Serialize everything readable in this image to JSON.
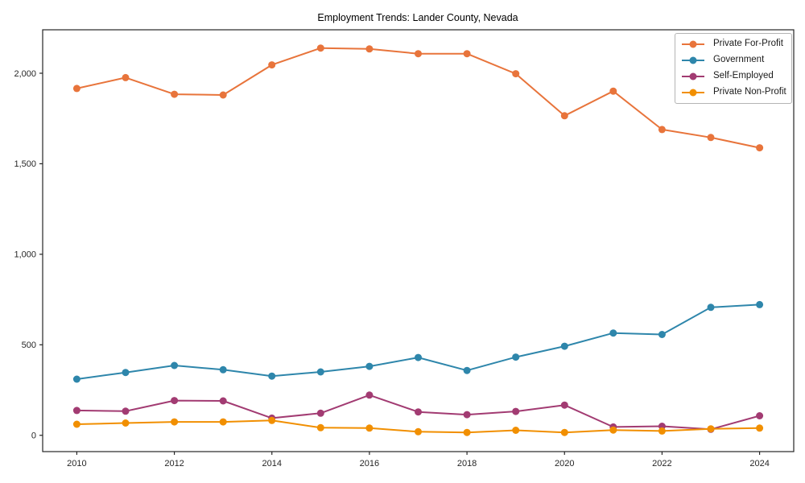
{
  "chart_data": {
    "type": "line",
    "title": "Employment Trends: Lander County, Nevada",
    "xlabel": "",
    "ylabel": "",
    "grid": false,
    "legend_position": "top-right",
    "x": [
      2010,
      2011,
      2012,
      2013,
      2014,
      2015,
      2016,
      2017,
      2018,
      2019,
      2020,
      2021,
      2022,
      2023,
      2024
    ],
    "xlim": [
      2009.3,
      2024.7
    ],
    "ylim": [
      -90,
      2240
    ],
    "x_ticks": [
      {
        "value": 2010,
        "label": "2010"
      },
      {
        "value": 2012,
        "label": "2012"
      },
      {
        "value": 2014,
        "label": "2014"
      },
      {
        "value": 2016,
        "label": "2016"
      },
      {
        "value": 2018,
        "label": "2018"
      },
      {
        "value": 2020,
        "label": "2020"
      },
      {
        "value": 2022,
        "label": "2022"
      },
      {
        "value": 2024,
        "label": "2024"
      }
    ],
    "y_ticks": [
      {
        "value": 0,
        "label": "0"
      },
      {
        "value": 500,
        "label": "500"
      },
      {
        "value": 1000,
        "label": "1,000"
      },
      {
        "value": 1500,
        "label": "1,500"
      },
      {
        "value": 2000,
        "label": "2,000"
      }
    ],
    "series": [
      {
        "name": "Private For-Profit",
        "color": "#E8743B",
        "values": [
          1916,
          1976,
          1884,
          1880,
          2046,
          2139,
          2134,
          2108,
          2108,
          1997,
          1765,
          1901,
          1689,
          1645,
          1588
        ]
      },
      {
        "name": "Government",
        "color": "#2E86AB",
        "values": [
          310,
          347,
          386,
          362,
          327,
          350,
          381,
          430,
          358,
          432,
          492,
          565,
          557,
          707,
          722
        ]
      },
      {
        "name": "Self-Employed",
        "color": "#A23B72",
        "values": [
          137,
          133,
          192,
          190,
          95,
          122,
          222,
          129,
          114,
          132,
          167,
          46,
          50,
          33,
          108
        ]
      },
      {
        "name": "Private Non-Profit",
        "color": "#F18F01",
        "values": [
          61,
          68,
          74,
          74,
          82,
          42,
          40,
          20,
          16,
          28,
          16,
          29,
          24,
          36,
          40
        ]
      }
    ]
  }
}
